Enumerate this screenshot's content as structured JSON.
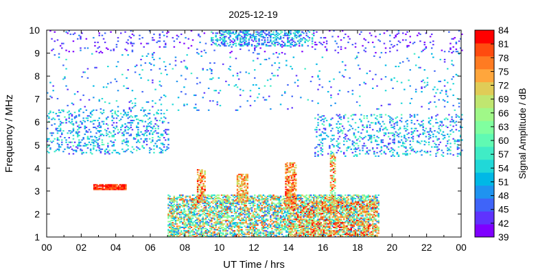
{
  "chart_data": {
    "type": "heatmap",
    "title": "2025-12-19",
    "xlabel": "UT Time / hrs",
    "ylabel": "Frequency / MHz",
    "xlim": [
      0,
      24
    ],
    "ylim": [
      1,
      10
    ],
    "x_ticks": [
      "00",
      "02",
      "04",
      "06",
      "08",
      "10",
      "12",
      "14",
      "16",
      "18",
      "20",
      "22",
      "00"
    ],
    "y_ticks": [
      "1",
      "2",
      "3",
      "4",
      "5",
      "6",
      "7",
      "8",
      "9",
      "10"
    ],
    "colorbar": {
      "label": "Signal Amplitude / dB",
      "min": 39,
      "max": 84,
      "ticks": [
        "39",
        "42",
        "45",
        "48",
        "51",
        "54",
        "57",
        "60",
        "63",
        "66",
        "69",
        "72",
        "75",
        "78",
        "81",
        "84"
      ],
      "colors": [
        "#7f00ff",
        "#5f33fe",
        "#3f64f9",
        "#1f93f0",
        "#00b8e6",
        "#20d8d8",
        "#40ecc6",
        "#60fab3",
        "#80ff9f",
        "#a0f888",
        "#c0e670",
        "#e0cc57",
        "#ffa63c",
        "#ff7b22",
        "#ff4b0f",
        "#ff0000"
      ]
    },
    "features": [
      {
        "name": "sparse-top-band",
        "t": [
          0,
          24
        ],
        "f": [
          9.0,
          10.0
        ],
        "amplitude": [
          39,
          48
        ]
      },
      {
        "name": "dense-top-band",
        "t": [
          9.5,
          15.5
        ],
        "f": [
          9.3,
          10.0
        ],
        "amplitude": [
          42,
          60
        ]
      },
      {
        "name": "night-band-left",
        "t": [
          0,
          7
        ],
        "f": [
          4.6,
          6.5
        ],
        "amplitude": [
          42,
          60
        ]
      },
      {
        "name": "night-band-right",
        "t": [
          15.5,
          24
        ],
        "f": [
          4.5,
          6.3
        ],
        "amplitude": [
          42,
          60
        ]
      },
      {
        "name": "scatter-mid",
        "t": [
          0,
          24
        ],
        "f": [
          6.5,
          9.0
        ],
        "amplitude": [
          42,
          57
        ]
      },
      {
        "name": "daytime-low-band",
        "t": [
          7,
          19.2
        ],
        "f": [
          1.0,
          2.8
        ],
        "amplitude": [
          45,
          81
        ]
      },
      {
        "name": "afternoon-strong",
        "t": [
          14,
          19
        ],
        "f": [
          1.0,
          2.5
        ],
        "amplitude": [
          66,
          84
        ]
      },
      {
        "name": "spike-09h",
        "t": [
          8.7,
          9.2
        ],
        "f": [
          2.5,
          3.9
        ],
        "amplitude": [
          66,
          84
        ]
      },
      {
        "name": "spike-11h",
        "t": [
          11.0,
          11.6
        ],
        "f": [
          2.5,
          3.7
        ],
        "amplitude": [
          66,
          81
        ]
      },
      {
        "name": "spike-14h",
        "t": [
          13.8,
          14.4
        ],
        "f": [
          2.2,
          4.2
        ],
        "amplitude": [
          69,
          84
        ]
      },
      {
        "name": "spike-1630",
        "t": [
          16.4,
          16.7
        ],
        "f": [
          2.0,
          4.6
        ],
        "amplitude": [
          60,
          84
        ]
      },
      {
        "name": "red-segment",
        "t": [
          2.7,
          4.6
        ],
        "f": [
          3.05,
          3.25
        ],
        "amplitude": [
          78,
          84
        ]
      }
    ]
  }
}
